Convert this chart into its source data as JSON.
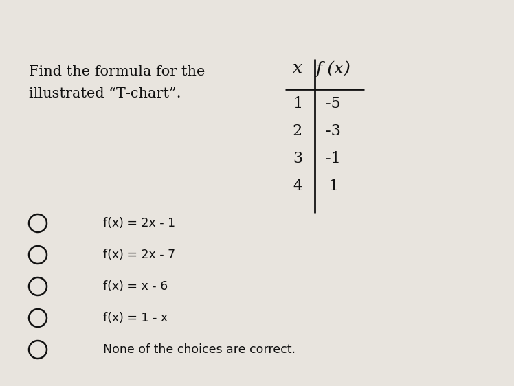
{
  "background_color": "#e8e4de",
  "title_line1": "Find the formula for the",
  "title_line2": "illustrated “T‐chart”.",
  "title_fontsize": 15,
  "title_font": "DejaVu Serif",
  "table_x_header": "x",
  "table_fx_header": "f (x)",
  "table_x_vals": [
    "1",
    "2",
    "3",
    "4"
  ],
  "table_fx_vals": [
    "-5",
    "-3",
    "-1",
    "1"
  ],
  "choices": [
    "f(x) = 2x - 1",
    "f(x) = 2x - 7",
    "f(x) = x - 6",
    "f(x) = 1 - x",
    "None of the choices are correct."
  ],
  "text_color": "#111111",
  "line_color": "#111111",
  "choices_font": "DejaVu Sans",
  "choices_fontsize": 12.5
}
